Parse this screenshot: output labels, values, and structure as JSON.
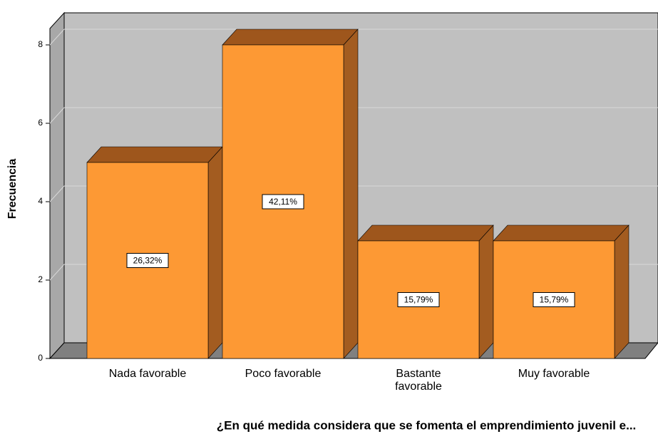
{
  "chart_data": {
    "type": "bar3d",
    "title": "¿En qué medida considera que se fomenta el emprendimiento juvenil e...",
    "y_label": "Frecuencia",
    "categories": [
      "Nada favorable",
      "Poco favorable",
      "Bastante favorable",
      "Muy favorable"
    ],
    "values": [
      5,
      8,
      3,
      3
    ],
    "percent_labels": [
      "26,32%",
      "42,11%",
      "15,79%",
      "15,79%"
    ],
    "color": "#fd9934",
    "ylim": [
      0,
      8.4
    ],
    "yticks": [
      0,
      2,
      4,
      6,
      8
    ],
    "grid": true
  }
}
